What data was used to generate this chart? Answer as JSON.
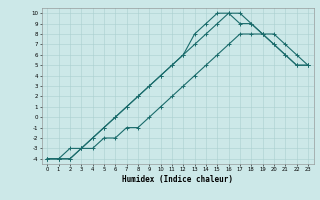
{
  "xlabel": "Humidex (Indice chaleur)",
  "bg_color": "#cce8e8",
  "line_color": "#1a6b6b",
  "grid_color": "#aad0d0",
  "xlim": [
    -0.5,
    23.5
  ],
  "ylim": [
    -4.5,
    10.5
  ],
  "xticks": [
    0,
    1,
    2,
    3,
    4,
    5,
    6,
    7,
    8,
    9,
    10,
    11,
    12,
    13,
    14,
    15,
    16,
    17,
    18,
    19,
    20,
    21,
    22,
    23
  ],
  "yticks": [
    -4,
    -3,
    -2,
    -1,
    0,
    1,
    2,
    3,
    4,
    5,
    6,
    7,
    8,
    9,
    10
  ],
  "curve1_x": [
    0,
    1,
    2,
    3,
    4,
    5,
    6,
    7,
    8,
    9,
    10,
    11,
    12,
    13,
    14,
    15,
    16,
    17,
    18,
    19,
    20,
    21,
    22,
    23
  ],
  "curve1_y": [
    -4,
    -4,
    -4,
    -3,
    -2,
    -1,
    0,
    1,
    2,
    3,
    4,
    5,
    6,
    7,
    8,
    9,
    10,
    10,
    9,
    8,
    7,
    6,
    5,
    5
  ],
  "curve2_x": [
    0,
    1,
    2,
    3,
    4,
    5,
    6,
    7,
    8,
    9,
    10,
    11,
    12,
    13,
    14,
    15,
    16,
    17,
    18,
    19,
    20,
    21,
    22,
    23
  ],
  "curve2_y": [
    -4,
    -4,
    -3,
    -3,
    -2,
    -1,
    0,
    1,
    2,
    3,
    4,
    5,
    6,
    8,
    9,
    10,
    10,
    9,
    9,
    8,
    7,
    6,
    5,
    5
  ],
  "curve3_x": [
    0,
    1,
    2,
    3,
    4,
    5,
    6,
    7,
    8,
    9,
    10,
    11,
    12,
    13,
    14,
    15,
    16,
    17,
    18,
    19,
    20,
    21,
    22,
    23
  ],
  "curve3_y": [
    -4,
    -4,
    -4,
    -3,
    -3,
    -2,
    -2,
    -1,
    -1,
    0,
    1,
    2,
    3,
    4,
    5,
    6,
    7,
    8,
    8,
    8,
    8,
    7,
    6,
    5
  ]
}
